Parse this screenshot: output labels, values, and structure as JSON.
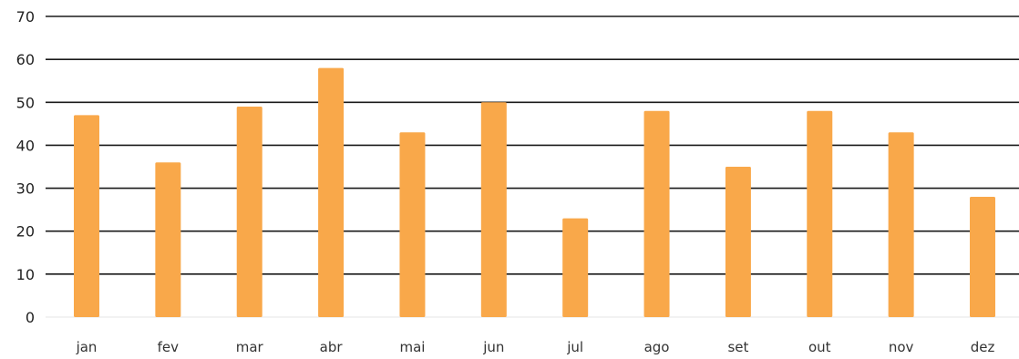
{
  "chart_data": {
    "type": "bar",
    "categories": [
      "jan",
      "fev",
      "mar",
      "abr",
      "mai",
      "jun",
      "jul",
      "ago",
      "set",
      "out",
      "nov",
      "dez"
    ],
    "values": [
      47,
      36,
      49,
      58,
      43,
      50,
      23,
      48,
      35,
      48,
      43,
      28
    ],
    "title": "",
    "xlabel": "",
    "ylabel": "",
    "ylim": [
      0,
      70
    ],
    "yticks": [
      0,
      10,
      20,
      30,
      40,
      50,
      60,
      70
    ],
    "grid": true,
    "legend": "none",
    "bar_color": "#f9a84a",
    "grid_color": "#1a1a1a"
  }
}
